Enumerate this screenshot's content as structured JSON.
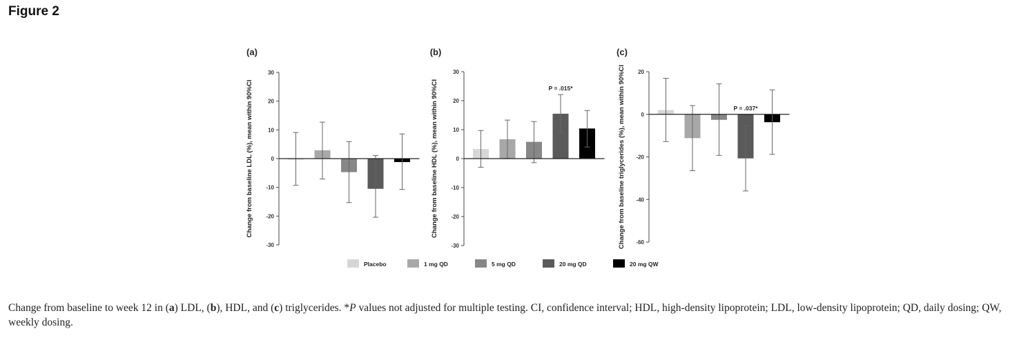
{
  "figure_title": "Figure 2",
  "legend": [
    {
      "label": "Placebo",
      "color": "#d6d6d6"
    },
    {
      "label": "1 mg QD",
      "color": "#a8a8a8"
    },
    {
      "label": "5 mg QD",
      "color": "#878787"
    },
    {
      "label": "20 mg QD",
      "color": "#5a5a5a"
    },
    {
      "label": "20 mg QW",
      "color": "#000000"
    }
  ],
  "caption": {
    "t1": "Change from baseline to week 12 in (",
    "a": "a",
    "t2": ") LDL, (",
    "b": "b",
    "t3": "), HDL, and (",
    "c": "c",
    "t4": ") triglycerides. *",
    "p": "P",
    "t5": " values not adjusted for multiple testing. CI, confidence interval; HDL, high-density lipoprotein; LDL, low-density lipoprotein; QD, daily dosing; QW, weekly dosing."
  },
  "chart_data": [
    {
      "type": "bar",
      "panel": "(a)",
      "ylabel": "Change from baseline LDL (%), mean within 90%CI",
      "ylim": [
        -30,
        30
      ],
      "yticks": [
        30,
        20,
        10,
        0,
        -10,
        -20,
        -30
      ],
      "categories": [
        "Placebo",
        "1 mg QD",
        "5 mg QD",
        "20 mg QD",
        "20 mg QW"
      ],
      "values": [
        -0.3,
        2.9,
        -4.7,
        -10.5,
        -1.2
      ],
      "ci_low": [
        -9.3,
        -7.1,
        -15.3,
        -20.4,
        -10.7
      ],
      "ci_high": [
        9.1,
        12.7,
        5.9,
        1.1,
        8.6
      ],
      "annotation": null
    },
    {
      "type": "bar",
      "panel": "(b)",
      "ylabel": "Change from baseline HDL (%), mean within 90%CI",
      "ylim": [
        -30,
        30
      ],
      "yticks": [
        30,
        20,
        10,
        0,
        -10,
        -20,
        -30
      ],
      "categories": [
        "Placebo",
        "1 mg QD",
        "5 mg QD",
        "20 mg QD",
        "20 mg QW"
      ],
      "values": [
        3.3,
        6.7,
        5.8,
        15.5,
        10.4
      ],
      "ci_low": [
        -3.0,
        0.1,
        -1.4,
        8.9,
        4.0
      ],
      "ci_high": [
        9.7,
        13.3,
        12.8,
        22.1,
        16.6
      ],
      "annotation": {
        "text": "P = .015*",
        "bar": 3
      }
    },
    {
      "type": "bar",
      "panel": "(c)",
      "ylabel": "Change from baseline triglycerides (%), mean within 90%CI",
      "ylim": [
        -60,
        20
      ],
      "yticks": [
        20,
        0,
        -20,
        -40,
        -60
      ],
      "categories": [
        "Placebo",
        "1 mg QD",
        "5 mg QD",
        "20 mg QD",
        "20 mg QW"
      ],
      "values": [
        2.0,
        -11.2,
        -2.6,
        -20.7,
        -3.7
      ],
      "ci_low": [
        -12.8,
        -26.5,
        -19.3,
        -36.0,
        -18.8
      ],
      "ci_high": [
        16.9,
        4.1,
        14.3,
        -5.4,
        11.5
      ],
      "annotation": {
        "text": "P = .037*",
        "bar": 3
      }
    }
  ]
}
